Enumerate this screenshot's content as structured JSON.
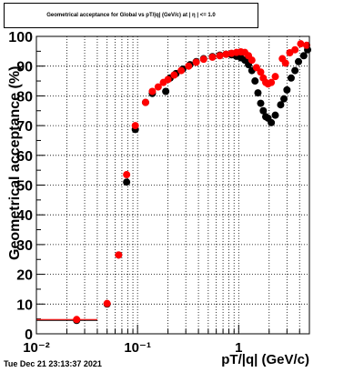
{
  "window": {
    "footer_timestamp": "Tue Dec 21 23:13:37 2021"
  },
  "chart_data": {
    "type": "scatter",
    "title": "Geometrical acceptance for Global vs pT/|q| (GeV/c) at | η | <= 1.0",
    "xlabel": "pT/|q| (GeV/c)",
    "ylabel": "Geometrical acceptance (%)",
    "xscale": "log",
    "xlim": [
      0.01,
      5.0
    ],
    "ylim": [
      0,
      100
    ],
    "grid": true,
    "x_major_ticks": [
      0.01,
      0.1,
      1
    ],
    "x_tick_labels": [
      "10⁻²",
      "10⁻¹",
      "1"
    ],
    "y_ticks": [
      0,
      10,
      20,
      30,
      40,
      50,
      60,
      70,
      80,
      90,
      100
    ],
    "series": [
      {
        "color": "#000000",
        "points": [
          {
            "x": 0.025,
            "y": 4.5,
            "xerr": [
              0.01,
              0.04
            ]
          },
          {
            "x": 0.05,
            "y": 10.0
          },
          {
            "x": 0.065,
            "y": 26.5
          },
          {
            "x": 0.078,
            "y": 51.0
          },
          {
            "x": 0.095,
            "y": 68.7
          },
          {
            "x": 0.12,
            "y": 77.8
          },
          {
            "x": 0.14,
            "y": 80.8
          },
          {
            "x": 0.19,
            "y": 81.5
          },
          {
            "x": 0.21,
            "y": 86.0
          },
          {
            "x": 0.24,
            "y": 87.5
          },
          {
            "x": 0.28,
            "y": 89.0
          },
          {
            "x": 0.33,
            "y": 90.5
          },
          {
            "x": 0.38,
            "y": 91.5
          },
          {
            "x": 0.45,
            "y": 92.5
          },
          {
            "x": 0.55,
            "y": 93.2
          },
          {
            "x": 0.65,
            "y": 93.7
          },
          {
            "x": 0.75,
            "y": 94.0
          },
          {
            "x": 0.85,
            "y": 93.8
          },
          {
            "x": 0.95,
            "y": 93.3
          },
          {
            "x": 1.05,
            "y": 92.8
          },
          {
            "x": 1.15,
            "y": 92.0
          },
          {
            "x": 1.25,
            "y": 90.5
          },
          {
            "x": 1.35,
            "y": 88.5
          },
          {
            "x": 1.45,
            "y": 85.0
          },
          {
            "x": 1.55,
            "y": 81.0
          },
          {
            "x": 1.65,
            "y": 77.5
          },
          {
            "x": 1.75,
            "y": 75.0
          },
          {
            "x": 1.85,
            "y": 73.0
          },
          {
            "x": 1.95,
            "y": 72.5
          },
          {
            "x": 2.1,
            "y": 71.0
          },
          {
            "x": 2.3,
            "y": 73.5
          },
          {
            "x": 2.6,
            "y": 77.0
          },
          {
            "x": 2.8,
            "y": 79.0
          },
          {
            "x": 3.0,
            "y": 82.0
          },
          {
            "x": 3.3,
            "y": 86.0
          },
          {
            "x": 3.6,
            "y": 88.5
          },
          {
            "x": 3.9,
            "y": 91.5
          },
          {
            "x": 4.4,
            "y": 93.5
          },
          {
            "x": 4.8,
            "y": 95.5
          }
        ]
      },
      {
        "color": "#ff0000",
        "points": [
          {
            "x": 0.025,
            "y": 4.8,
            "xerr": [
              0.01,
              0.04
            ]
          },
          {
            "x": 0.05,
            "y": 10.2
          },
          {
            "x": 0.065,
            "y": 26.5
          },
          {
            "x": 0.078,
            "y": 53.5
          },
          {
            "x": 0.095,
            "y": 70.0
          },
          {
            "x": 0.12,
            "y": 77.8
          },
          {
            "x": 0.14,
            "y": 81.5
          },
          {
            "x": 0.16,
            "y": 83.0
          },
          {
            "x": 0.18,
            "y": 84.5
          },
          {
            "x": 0.2,
            "y": 85.5
          },
          {
            "x": 0.23,
            "y": 87.0
          },
          {
            "x": 0.27,
            "y": 88.5
          },
          {
            "x": 0.32,
            "y": 90.0
          },
          {
            "x": 0.38,
            "y": 91.3
          },
          {
            "x": 0.45,
            "y": 92.3
          },
          {
            "x": 0.55,
            "y": 93.0
          },
          {
            "x": 0.65,
            "y": 93.5
          },
          {
            "x": 0.75,
            "y": 94.0
          },
          {
            "x": 0.85,
            "y": 94.3
          },
          {
            "x": 0.95,
            "y": 94.6
          },
          {
            "x": 1.05,
            "y": 94.8
          },
          {
            "x": 1.15,
            "y": 94.6
          },
          {
            "x": 1.25,
            "y": 93.5
          },
          {
            "x": 1.35,
            "y": 92.0
          },
          {
            "x": 1.5,
            "y": 89.5
          },
          {
            "x": 1.65,
            "y": 88.0
          },
          {
            "x": 1.75,
            "y": 86.0
          },
          {
            "x": 1.85,
            "y": 84.5
          },
          {
            "x": 1.95,
            "y": 84.0
          },
          {
            "x": 2.1,
            "y": 84.5
          },
          {
            "x": 2.3,
            "y": 86.5
          },
          {
            "x": 2.7,
            "y": 92.5
          },
          {
            "x": 2.9,
            "y": 91.0
          },
          {
            "x": 3.2,
            "y": 94.5
          },
          {
            "x": 3.6,
            "y": 95.5
          },
          {
            "x": 4.1,
            "y": 97.5
          },
          {
            "x": 4.7,
            "y": 97.0
          }
        ]
      }
    ]
  }
}
